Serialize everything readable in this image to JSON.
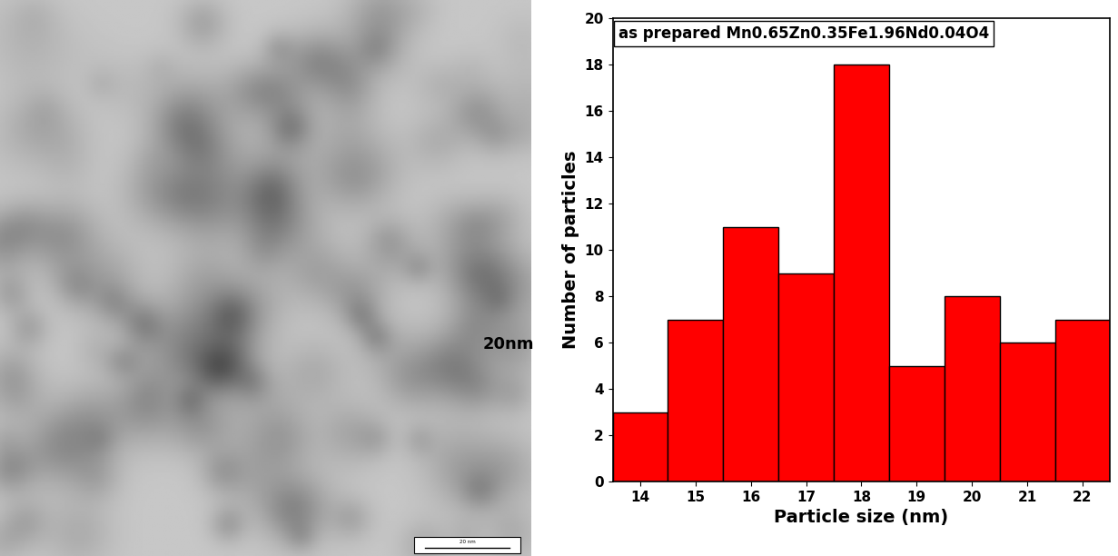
{
  "micrograph": {
    "label": "20nm",
    "scale_bar_label": "20 nm"
  },
  "chart_data": {
    "type": "histogram",
    "title": "as prepared Mn0.65Zn0.35Fe1.96Nd0.04O4",
    "x_label": "Particle size (nm)",
    "y_label": "Number of particles",
    "bins": [
      13.5,
      14.5,
      15.5,
      16.5,
      17.5,
      18.5,
      19.5,
      20.5,
      21.5,
      22.5
    ],
    "values": [
      3,
      7,
      11,
      9,
      18,
      5,
      8,
      6,
      7
    ],
    "color": "#ff0000",
    "xlim": [
      13.5,
      22.5
    ],
    "xticks": [
      14,
      15,
      16,
      17,
      18,
      19,
      20,
      21,
      22
    ],
    "ylim": [
      0,
      20
    ],
    "yticks": [
      0,
      2,
      4,
      6,
      8,
      10,
      12,
      14,
      16,
      18,
      20
    ],
    "grid": false
  }
}
